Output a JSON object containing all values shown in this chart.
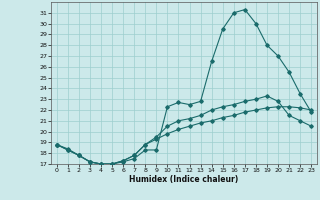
{
  "xlabel": "Humidex (Indice chaleur)",
  "xlim": [
    -0.5,
    23.5
  ],
  "ylim": [
    17,
    32
  ],
  "yticks": [
    17,
    18,
    19,
    20,
    21,
    22,
    23,
    24,
    25,
    26,
    27,
    28,
    29,
    30,
    31
  ],
  "xticks": [
    0,
    1,
    2,
    3,
    4,
    5,
    6,
    7,
    8,
    9,
    10,
    11,
    12,
    13,
    14,
    15,
    16,
    17,
    18,
    19,
    20,
    21,
    22,
    23
  ],
  "bg_color": "#cce9ea",
  "grid_color": "#9ecece",
  "line_color": "#1a6b6b",
  "line1_x": [
    0,
    1,
    2,
    3,
    4,
    5,
    6,
    7,
    8,
    9,
    10,
    11,
    12,
    13,
    14,
    15,
    16,
    17,
    18,
    19,
    20,
    21,
    22,
    23
  ],
  "line1_y": [
    18.8,
    18.4,
    17.8,
    17.2,
    17.0,
    17.0,
    17.2,
    17.5,
    18.3,
    18.3,
    22.3,
    22.7,
    22.5,
    22.8,
    26.5,
    29.5,
    31.0,
    31.3,
    30.0,
    28.0,
    27.0,
    25.5,
    23.5,
    21.8
  ],
  "line2_x": [
    0,
    1,
    2,
    3,
    4,
    5,
    6,
    7,
    8,
    9,
    10,
    11,
    12,
    13,
    14,
    15,
    16,
    17,
    18,
    19,
    20,
    21,
    22,
    23
  ],
  "line2_y": [
    18.8,
    18.3,
    17.8,
    17.2,
    17.0,
    17.0,
    17.3,
    17.8,
    18.8,
    19.5,
    20.5,
    21.0,
    21.2,
    21.5,
    22.0,
    22.3,
    22.5,
    22.8,
    23.0,
    23.3,
    22.8,
    21.5,
    21.0,
    20.5
  ],
  "line3_x": [
    0,
    1,
    2,
    3,
    4,
    5,
    6,
    7,
    8,
    9,
    10,
    11,
    12,
    13,
    14,
    15,
    16,
    17,
    18,
    19,
    20,
    21,
    22,
    23
  ],
  "line3_y": [
    18.8,
    18.3,
    17.8,
    17.2,
    17.0,
    17.0,
    17.3,
    17.8,
    18.8,
    19.3,
    19.8,
    20.2,
    20.5,
    20.8,
    21.0,
    21.3,
    21.5,
    21.8,
    22.0,
    22.2,
    22.3,
    22.3,
    22.2,
    22.0
  ]
}
